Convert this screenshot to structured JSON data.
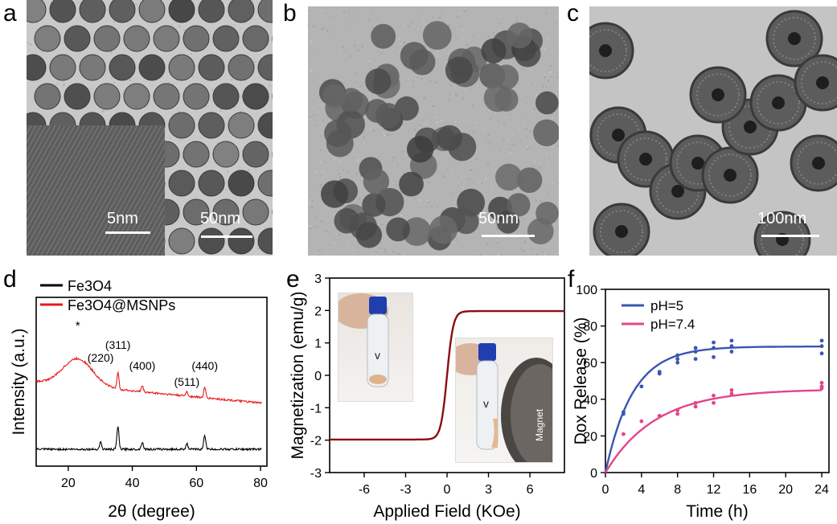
{
  "panels": {
    "a": {
      "label": "a",
      "scale_main": "50nm",
      "scale_inset": "5nm"
    },
    "b": {
      "label": "b",
      "scale_main": "50nm"
    },
    "c": {
      "label": "c",
      "scale_main": "100nm"
    },
    "d": {
      "label": "d"
    },
    "e": {
      "label": "e",
      "inset_text": "Magnet"
    },
    "f": {
      "label": "f"
    }
  },
  "chart_data": [
    {
      "panel": "d",
      "type": "line",
      "xlabel": "2θ (degree)",
      "ylabel": "Intensity (a.u.)",
      "xlim": [
        10,
        82
      ],
      "xticks": [
        20,
        40,
        60,
        80
      ],
      "yticks_shown": false,
      "legend": "top-left",
      "series": [
        {
          "name": "Fe3O4",
          "name_sub": "3",
          "name_sub2": "4",
          "color": "#000000",
          "peaks": [
            [
              30.1,
              0.25
            ],
            [
              35.5,
              0.8
            ],
            [
              43.1,
              0.25
            ],
            [
              57.0,
              0.2
            ],
            [
              62.6,
              0.5
            ]
          ]
        },
        {
          "name": "Fe3O4@MSNPs",
          "color": "#e8181a",
          "peaks": [
            [
              35.5,
              0.55
            ],
            [
              43.1,
              0.2
            ],
            [
              57.0,
              0.15
            ],
            [
              62.6,
              0.35
            ]
          ]
        }
      ],
      "annotations": [
        {
          "text": "*",
          "x": 23
        },
        {
          "text": "(220)",
          "x": 30.1
        },
        {
          "text": "(311)",
          "x": 35.5
        },
        {
          "text": "(400)",
          "x": 43.1
        },
        {
          "text": "(511)",
          "x": 57.0
        },
        {
          "text": "(440)",
          "x": 62.6
        }
      ]
    },
    {
      "panel": "e",
      "type": "line",
      "xlabel": "Applied Field (KOe)",
      "ylabel": "Magnetization (emu/g)",
      "xlim": [
        -8.5,
        8.5
      ],
      "ylim": [
        -3,
        3
      ],
      "xticks": [
        -6,
        -3,
        0,
        3,
        6
      ],
      "yticks": [
        -3,
        -2,
        -1,
        0,
        1,
        2,
        3
      ],
      "series": [
        {
          "name": "",
          "color": "#8b0d12",
          "saturation": 1.98,
          "shape": "tanh",
          "scale": 0.45
        }
      ]
    },
    {
      "panel": "f",
      "type": "line",
      "xlabel": "Time (h)",
      "ylabel": "Dox Release (%)",
      "xlim": [
        0,
        24.8
      ],
      "ylim": [
        0,
        100
      ],
      "xticks": [
        0,
        4,
        8,
        12,
        16,
        20,
        24
      ],
      "yticks": [
        0,
        20,
        40,
        60,
        80,
        100
      ],
      "legend": "top-left",
      "series": [
        {
          "name": "pH=5",
          "color": "#3a56b0",
          "fit": {
            "ymax": 68.8,
            "k": 0.33
          },
          "points": [
            [
              2,
              32
            ],
            [
              2,
              33
            ],
            [
              4,
              47
            ],
            [
              6,
              54
            ],
            [
              6,
              55
            ],
            [
              8,
              60
            ],
            [
              8,
              62
            ],
            [
              8,
              64
            ],
            [
              10,
              62
            ],
            [
              10,
              66
            ],
            [
              10,
              68
            ],
            [
              12,
              63
            ],
            [
              12,
              68
            ],
            [
              12,
              71
            ],
            [
              14,
              66
            ],
            [
              14,
              69
            ],
            [
              14,
              72
            ],
            [
              24,
              65
            ],
            [
              24,
              69
            ],
            [
              24,
              72
            ]
          ]
        },
        {
          "name": "pH=7.4",
          "color": "#e3458c",
          "fit": {
            "ymax": 45.5,
            "k": 0.18
          },
          "points": [
            [
              2,
              21
            ],
            [
              4,
              28
            ],
            [
              6,
              31
            ],
            [
              8,
              32
            ],
            [
              8,
              34
            ],
            [
              10,
              36
            ],
            [
              10,
              38
            ],
            [
              12,
              38
            ],
            [
              12,
              42
            ],
            [
              14,
              43
            ],
            [
              14,
              45
            ],
            [
              24,
              46
            ],
            [
              24,
              47
            ],
            [
              24,
              49
            ]
          ]
        }
      ]
    }
  ]
}
